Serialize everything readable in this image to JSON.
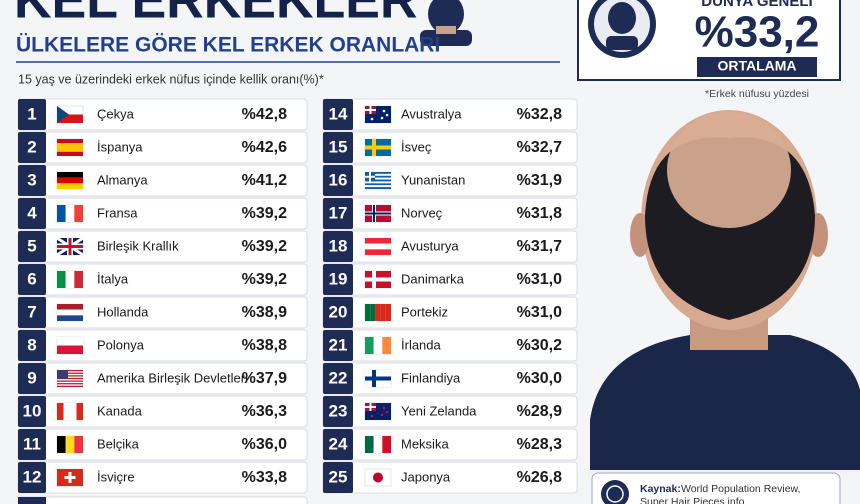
{
  "header": {
    "title": "KEL ERKEKLER",
    "subtitle": "ÜLKELERE GÖRE KEL ERKEK ORANLARI",
    "note": "15 yaş ve üzerindeki erkek nüfus içinde kellik oranı(%)*"
  },
  "ranking": {
    "left": [
      {
        "rank": 1,
        "country": "Çekya",
        "value": "%42,8"
      },
      {
        "rank": 2,
        "country": "İspanya",
        "value": "%42,6"
      },
      {
        "rank": 3,
        "country": "Almanya",
        "value": "%41,2"
      },
      {
        "rank": 4,
        "country": "Fransa",
        "value": "%39,2"
      },
      {
        "rank": 5,
        "country": "Birleşik Krallık",
        "value": "%39,2"
      },
      {
        "rank": 6,
        "country": "İtalya",
        "value": "%39,2"
      },
      {
        "rank": 7,
        "country": "Hollanda",
        "value": "%38,9"
      },
      {
        "rank": 8,
        "country": "Polonya",
        "value": "%38,8"
      },
      {
        "rank": 9,
        "country": "Amerika Birleşik Devletleri",
        "value": "%37,9"
      },
      {
        "rank": 10,
        "country": "Kanada",
        "value": "%36,3"
      },
      {
        "rank": 11,
        "country": "Belçika",
        "value": "%36,0"
      },
      {
        "rank": 12,
        "country": "İsviçre",
        "value": "%33,8"
      }
    ],
    "right": [
      {
        "rank": 14,
        "country": "Avustralya",
        "value": "%32,8"
      },
      {
        "rank": 15,
        "country": "İsveç",
        "value": "%32,7"
      },
      {
        "rank": 16,
        "country": "Yunanistan",
        "value": "%31,9"
      },
      {
        "rank": 17,
        "country": "Norveç",
        "value": "%31,8"
      },
      {
        "rank": 18,
        "country": "Avusturya",
        "value": "%31,7"
      },
      {
        "rank": 19,
        "country": "Danimarka",
        "value": "%31,0"
      },
      {
        "rank": 20,
        "country": "Portekiz",
        "value": "%31,0"
      },
      {
        "rank": 21,
        "country": "İrlanda",
        "value": "%30,2"
      },
      {
        "rank": 22,
        "country": "Finlandiya",
        "value": "%30,0"
      },
      {
        "rank": 23,
        "country": "Yeni Zelanda",
        "value": "%28,9"
      },
      {
        "rank": 24,
        "country": "Meksika",
        "value": "%28,3"
      },
      {
        "rank": 25,
        "country": "Japonya",
        "value": "%26,8"
      }
    ]
  },
  "world": {
    "label": "DÜNYA GENELİ",
    "value": "%33,2",
    "badge": "ORTALAMA",
    "footnote": "*Erkek nüfusu yüzdesi"
  },
  "source": {
    "label": "Kaynak:",
    "text1": "World Population Review,",
    "text2": "Super Hair Pieces info"
  }
}
